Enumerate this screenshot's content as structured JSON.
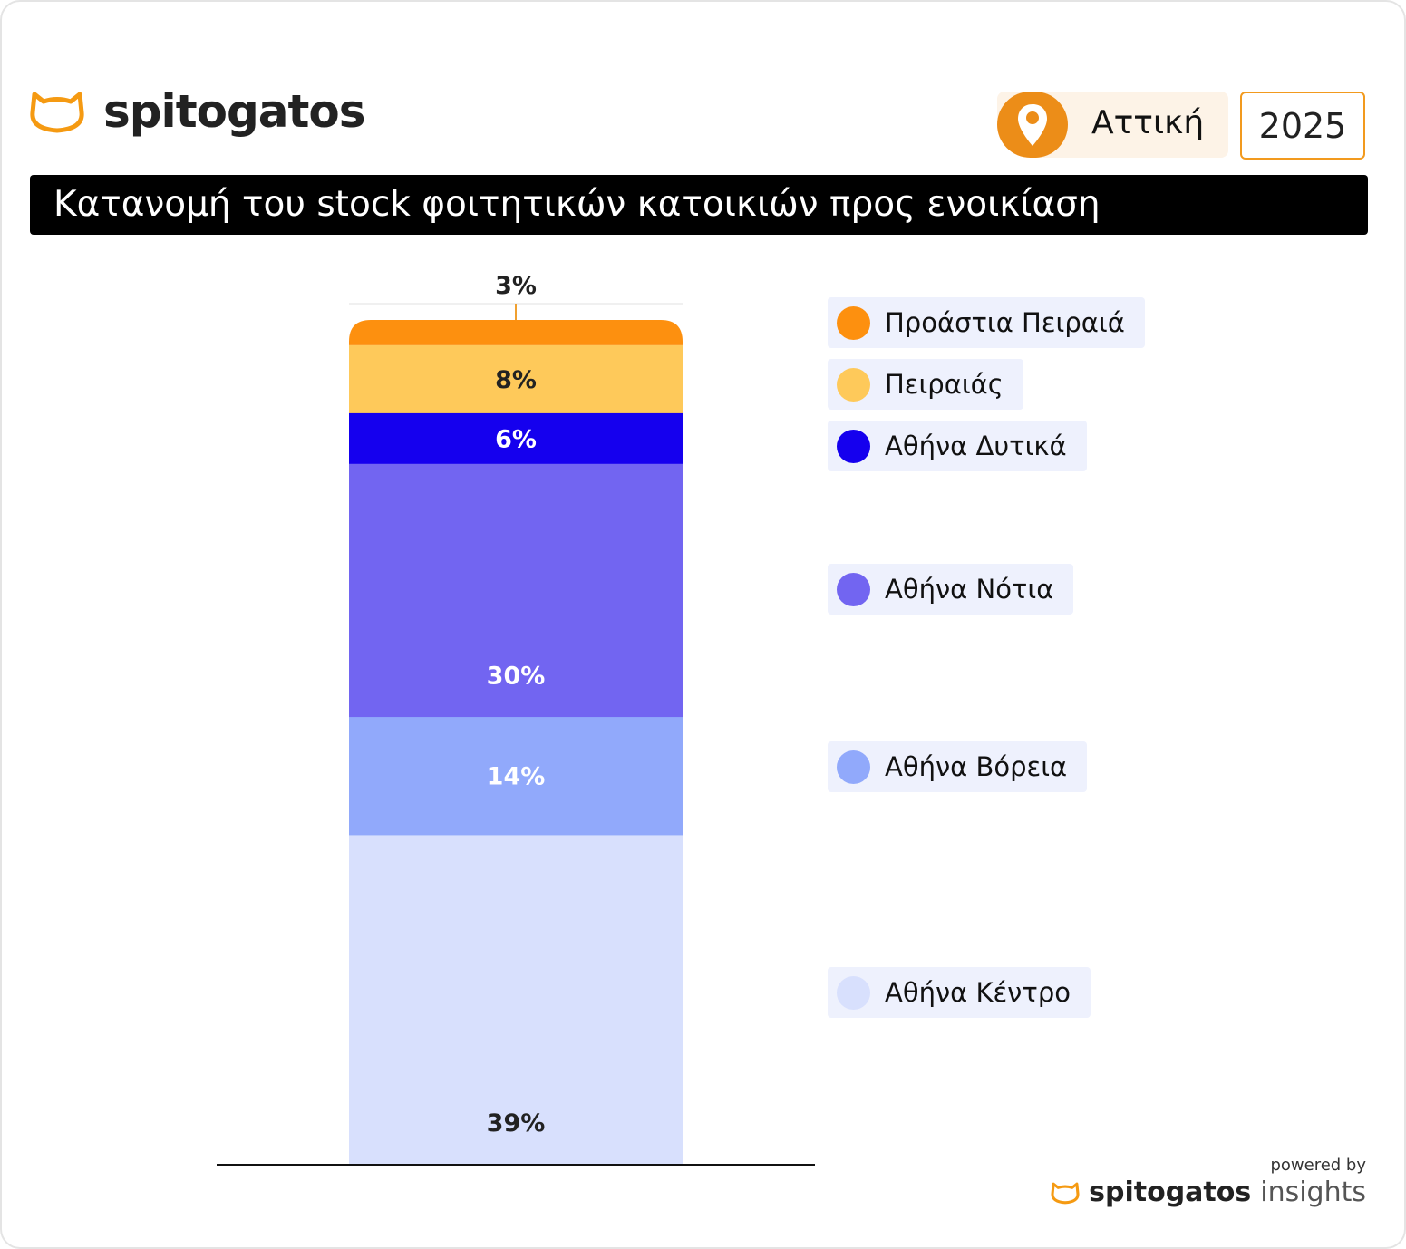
{
  "header": {
    "brand": "spitogatos",
    "region": "Αττική",
    "year": "2025"
  },
  "title": "Κατανομή του stock φοιτητικών κατοικιών προς ενοικίαση",
  "footer": {
    "powered_by": "powered by",
    "brand": "spitogatos",
    "product": "insights"
  },
  "colors": {
    "accent": "#ec8d18",
    "title_bg": "#000000"
  },
  "chart_data": {
    "type": "stacked-bar",
    "categories": [
      ""
    ],
    "series": [
      {
        "name": "Αθήνα Κέντρο",
        "values": [
          39
        ],
        "label": "39%",
        "color": "#d8e0fd",
        "label_color": "#222222"
      },
      {
        "name": "Αθήνα Βόρεια",
        "values": [
          14
        ],
        "label": "14%",
        "color": "#91a9fb",
        "label_color": "#ffffff"
      },
      {
        "name": "Αθήνα Νότια",
        "values": [
          30
        ],
        "label": "30%",
        "color": "#7265f1",
        "label_color": "#ffffff"
      },
      {
        "name": "Αθήνα Δυτικά",
        "values": [
          6
        ],
        "label": "6%",
        "color": "#1500ee",
        "label_color": "#ffffff"
      },
      {
        "name": "Πειραιάς",
        "values": [
          8
        ],
        "label": "8%",
        "color": "#fec95a",
        "label_color": "#222222"
      },
      {
        "name": "Προάστια Πειραιά",
        "values": [
          3
        ],
        "label": "3%",
        "color": "#fd900f",
        "label_color": "#222222"
      }
    ],
    "ylim": [
      0,
      100
    ],
    "legend": "right"
  }
}
